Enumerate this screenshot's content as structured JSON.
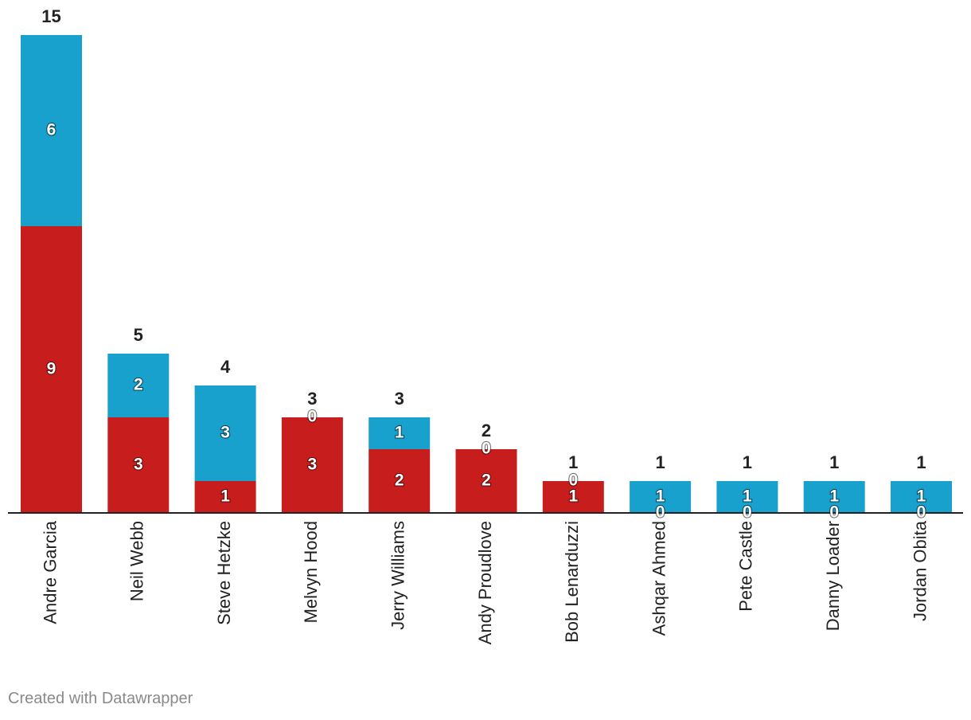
{
  "chart_data": {
    "type": "bar",
    "stacked": true,
    "title": "",
    "xlabel": "",
    "ylabel": "",
    "ylim": [
      0,
      15
    ],
    "grid": false,
    "categories": [
      "Andre Garcia",
      "Neil Webb",
      "Steve Hetzke",
      "Melvyn Hood",
      "Jerry Williams",
      "Andy Proudlove",
      "Bob Lenarduzzi",
      "Ashqar Ahmed",
      "Pete Castle",
      "Danny Loader",
      "Jordan Obita"
    ],
    "series": [
      {
        "name": "Series 1",
        "color": "#c71e1d",
        "values": [
          9,
          3,
          1,
          3,
          2,
          2,
          1,
          0,
          0,
          0,
          0
        ]
      },
      {
        "name": "Series 2",
        "color": "#18a1cd",
        "values": [
          6,
          2,
          3,
          0,
          1,
          0,
          0,
          1,
          1,
          1,
          1
        ]
      }
    ],
    "totals": [
      15,
      5,
      4,
      3,
      3,
      2,
      1,
      1,
      1,
      1,
      1
    ]
  },
  "footer": {
    "credit": "Created with Datawrapper"
  }
}
